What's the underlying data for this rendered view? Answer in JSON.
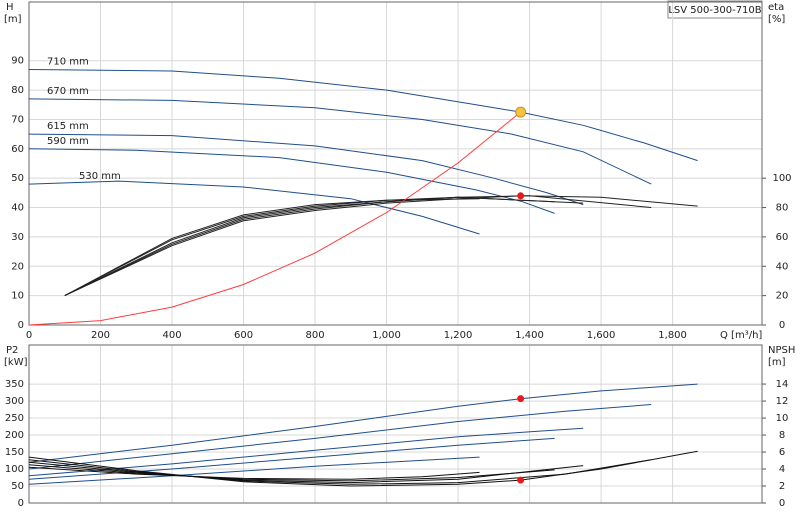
{
  "title": "LSV 500-300-710B",
  "chart_data": [
    {
      "type": "line",
      "ylabel": "H",
      "yunit": "[m]",
      "y2label": "eta",
      "y2unit": "[%]",
      "xlabel": "Q [m³/h]",
      "xlim": [
        0,
        2050
      ],
      "ylim": [
        0,
        110
      ],
      "y2lim": [
        0,
        220
      ],
      "xticks": [
        0,
        200,
        400,
        600,
        800,
        {
          "value": 1000,
          "label": "1,000"
        },
        {
          "value": 1200,
          "label": "1,200"
        },
        {
          "value": 1400,
          "label": "1,400"
        },
        {
          "value": 1600,
          "label": "1,600"
        },
        {
          "value": 1800,
          "label": "1,800"
        }
      ],
      "yticks": [
        0,
        10,
        20,
        30,
        40,
        50,
        60,
        70,
        80,
        90
      ],
      "y2ticks": [
        0,
        20,
        40,
        60,
        80,
        100
      ],
      "grid": true,
      "series": [
        {
          "name": "710 mm",
          "color": "#1f4e8c",
          "x": [
            0,
            400,
            700,
            1000,
            1250,
            1375,
            1550,
            1720,
            1870
          ],
          "values": [
            87,
            86.5,
            84,
            80,
            75,
            72.5,
            68,
            62,
            56
          ]
        },
        {
          "name": "670 mm",
          "color": "#1f4e8c",
          "x": [
            0,
            400,
            800,
            1100,
            1350,
            1550,
            1740
          ],
          "values": [
            77,
            76.5,
            74,
            70,
            65,
            59,
            48
          ]
        },
        {
          "name": "615 mm",
          "color": "#1f4e8c",
          "x": [
            0,
            400,
            800,
            1100,
            1300,
            1450,
            1550
          ],
          "values": [
            65,
            64.5,
            61,
            56,
            50,
            45,
            41
          ]
        },
        {
          "name": "590 mm",
          "color": "#1f4e8c",
          "x": [
            0,
            300,
            700,
            1000,
            1250,
            1380,
            1470
          ],
          "values": [
            60,
            59.5,
            57,
            52,
            46,
            42,
            38
          ]
        },
        {
          "name": "530 mm",
          "color": "#1f4e8c",
          "x": [
            0,
            250,
            600,
            900,
            1100,
            1260
          ],
          "values": [
            48,
            49,
            47,
            43,
            37,
            31
          ]
        },
        {
          "color": "#222222",
          "axis": "y2",
          "x": [
            100,
            400,
            600,
            800,
            1000,
            1260
          ],
          "values": [
            20,
            59,
            75,
            82,
            85,
            86
          ]
        },
        {
          "color": "#222222",
          "axis": "y2",
          "x": [
            100,
            400,
            600,
            800,
            1000,
            1200,
            1470
          ],
          "values": [
            20,
            58,
            74,
            81,
            85,
            87,
            84
          ]
        },
        {
          "color": "#222222",
          "axis": "y2",
          "x": [
            100,
            400,
            600,
            800,
            1000,
            1200,
            1550
          ],
          "values": [
            20,
            56,
            73,
            80,
            84,
            87,
            83
          ]
        },
        {
          "color": "#222222",
          "axis": "y2",
          "x": [
            100,
            400,
            600,
            800,
            1000,
            1200,
            1400,
            1740
          ],
          "values": [
            20,
            55,
            72,
            79,
            84,
            87,
            88,
            80
          ]
        },
        {
          "color": "#222222",
          "axis": "y2",
          "x": [
            100,
            400,
            600,
            800,
            1000,
            1200,
            1375,
            1600,
            1870
          ],
          "values": [
            20,
            54,
            71,
            78,
            83,
            86,
            88,
            87,
            81
          ]
        },
        {
          "color": "#ff3b3b",
          "x": [
            0,
            200,
            400,
            600,
            800,
            1000,
            1200,
            1375
          ],
          "values": [
            0,
            1.5,
            6.1,
            13.8,
            24.5,
            38.3,
            55.2,
            72.5
          ]
        },
        {
          "color": "#f5c242",
          "style": "marker",
          "x": [
            1375
          ],
          "values": [
            72.5
          ]
        },
        {
          "color": "#e8191b",
          "style": "marker",
          "axis": "y2",
          "x": [
            1375
          ],
          "values": [
            88
          ]
        }
      ]
    },
    {
      "type": "line",
      "ylabel": "P2",
      "yunit": "[kW]",
      "y2label": "NPSH",
      "y2unit": "[m]",
      "xlim": [
        0,
        2050
      ],
      "ylim": [
        0,
        465
      ],
      "y2lim": [
        0,
        18.6
      ],
      "xticks": [
        0,
        200,
        400,
        600,
        800,
        1000,
        1200,
        1400,
        1600,
        1800
      ],
      "yticks": [
        0,
        50,
        100,
        150,
        200,
        250,
        300,
        350
      ],
      "y2ticks": [
        0,
        2,
        4,
        6,
        8,
        10,
        12,
        14
      ],
      "grid": true,
      "series": [
        {
          "color": "#1f4e8c",
          "x": [
            0,
            400,
            800,
            1200,
            1375,
            1600,
            1870
          ],
          "values": [
            120,
            170,
            225,
            285,
            307,
            330,
            350
          ]
        },
        {
          "color": "#1f4e8c",
          "x": [
            0,
            400,
            800,
            1200,
            1500,
            1740
          ],
          "values": [
            100,
            145,
            190,
            240,
            270,
            290
          ]
        },
        {
          "color": "#1f4e8c",
          "x": [
            0,
            400,
            800,
            1200,
            1550
          ],
          "values": [
            80,
            115,
            155,
            195,
            220
          ]
        },
        {
          "color": "#1f4e8c",
          "x": [
            0,
            400,
            800,
            1200,
            1470
          ],
          "values": [
            70,
            100,
            135,
            170,
            190
          ]
        },
        {
          "color": "#1f4e8c",
          "x": [
            0,
            400,
            800,
            1260
          ],
          "values": [
            55,
            80,
            108,
            135
          ]
        },
        {
          "color": "#111111",
          "axis": "y2",
          "x": [
            0,
            300,
            600,
            900,
            1100,
            1260
          ],
          "values": [
            4.2,
            3.4,
            2.9,
            2.8,
            3.1,
            3.6
          ]
        },
        {
          "color": "#111111",
          "axis": "y2",
          "x": [
            0,
            300,
            600,
            900,
            1200,
            1470
          ],
          "values": [
            4.5,
            3.5,
            2.8,
            2.6,
            3.0,
            3.9
          ]
        },
        {
          "color": "#111111",
          "axis": "y2",
          "x": [
            0,
            300,
            600,
            900,
            1200,
            1550
          ],
          "values": [
            4.8,
            3.6,
            2.7,
            2.4,
            2.8,
            4.4
          ]
        },
        {
          "color": "#111111",
          "axis": "y2",
          "x": [
            0,
            300,
            600,
            900,
            1200,
            1500,
            1740
          ],
          "values": [
            5.1,
            3.7,
            2.6,
            2.2,
            2.4,
            3.4,
            5.1
          ]
        },
        {
          "color": "#111111",
          "axis": "y2",
          "x": [
            0,
            300,
            600,
            900,
            1200,
            1375,
            1600,
            1870
          ],
          "values": [
            5.4,
            3.8,
            2.5,
            2.0,
            2.2,
            2.7,
            4.0,
            6.1
          ]
        },
        {
          "color": "#e8191b",
          "style": "marker",
          "x": [
            1375
          ],
          "values": [
            307
          ]
        },
        {
          "color": "#e8191b",
          "style": "marker",
          "axis": "y2",
          "x": [
            1375
          ],
          "values": [
            2.7
          ]
        }
      ]
    }
  ]
}
